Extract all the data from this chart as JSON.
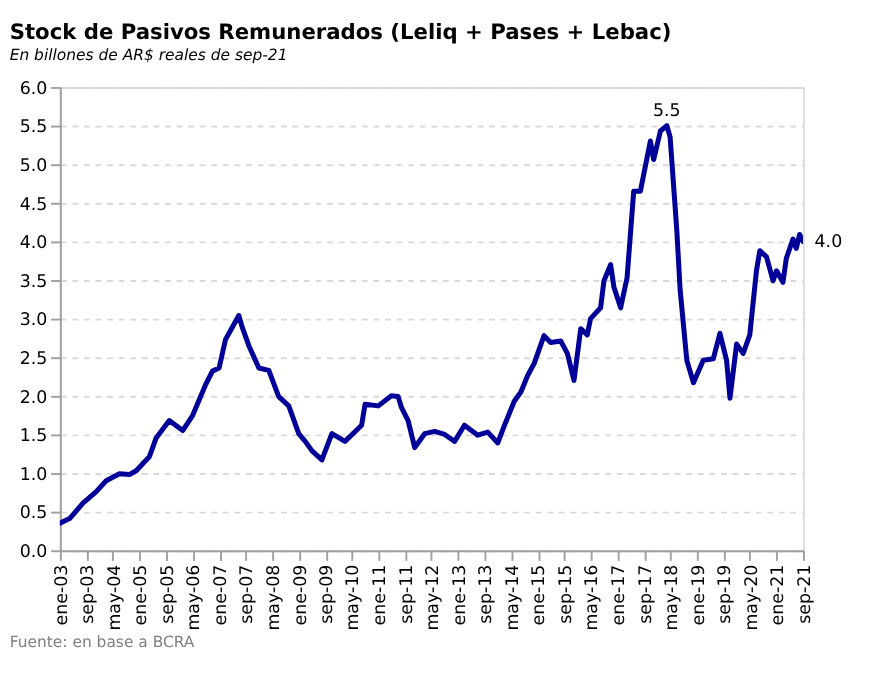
{
  "chart_data": {
    "type": "line",
    "title": "Stock de Pasivos Remunerados (Leliq + Pases + Lebac)",
    "subtitle": "En billones de AR$ reales de sep-21",
    "x": [
      "2003-01",
      "2003-04",
      "2003-06",
      "2003-08",
      "2003-12",
      "2004-03",
      "2004-07",
      "2004-10",
      "2004-12",
      "2005-04",
      "2005-06",
      "2005-10",
      "2006-02",
      "2006-05",
      "2006-09",
      "2006-11",
      "2007-01",
      "2007-03",
      "2007-07",
      "2007-08",
      "2007-10",
      "2008-01",
      "2008-04",
      "2008-07",
      "2008-10",
      "2009-01",
      "2009-03",
      "2009-05",
      "2009-08",
      "2009-11",
      "2010-03",
      "2010-08",
      "2010-09",
      "2011-01",
      "2011-05",
      "2011-07",
      "2011-08",
      "2011-10",
      "2011-12",
      "2012-03",
      "2012-06",
      "2012-09",
      "2012-12",
      "2013-03",
      "2013-07",
      "2013-10",
      "2014-01",
      "2014-03",
      "2014-06",
      "2014-08",
      "2014-10",
      "2014-12",
      "2015-03",
      "2015-05",
      "2015-08",
      "2015-10",
      "2015-12",
      "2016-02",
      "2016-04",
      "2016-05",
      "2016-08",
      "2016-09",
      "2016-11",
      "2016-12",
      "2017-02",
      "2017-04",
      "2017-06",
      "2017-08",
      "2017-11",
      "2017-12",
      "2018-02",
      "2018-04",
      "2018-05",
      "2018-07",
      "2018-08",
      "2018-10",
      "2018-12",
      "2019-03",
      "2019-06",
      "2019-08",
      "2019-10",
      "2019-11",
      "2020-01",
      "2020-03",
      "2020-05",
      "2020-07",
      "2020-08",
      "2020-10",
      "2020-12",
      "2021-01",
      "2021-03",
      "2021-04",
      "2021-06",
      "2021-07",
      "2021-08",
      "2021-09"
    ],
    "series": [
      {
        "color": "#000099",
        "values": [
          0.35,
          0.41,
          0.51,
          0.61,
          0.76,
          0.9,
          0.99,
          0.98,
          1.03,
          1.21,
          1.45,
          1.68,
          1.55,
          1.74,
          2.15,
          2.32,
          2.36,
          2.73,
          3.04,
          2.89,
          2.65,
          2.36,
          2.33,
          1.99,
          1.87,
          1.51,
          1.41,
          1.29,
          1.17,
          1.51,
          1.41,
          1.62,
          1.89,
          1.87,
          2.0,
          1.99,
          1.85,
          1.68,
          1.33,
          1.51,
          1.54,
          1.5,
          1.41,
          1.62,
          1.49,
          1.53,
          1.39,
          1.61,
          1.93,
          2.05,
          2.26,
          2.42,
          2.78,
          2.69,
          2.71,
          2.55,
          2.2,
          2.87,
          2.79,
          3.0,
          3.14,
          3.49,
          3.7,
          3.41,
          3.14,
          3.53,
          4.65,
          4.65,
          5.3,
          5.06,
          5.43,
          5.5,
          5.35,
          4.15,
          3.37,
          2.46,
          2.17,
          2.46,
          2.48,
          2.81,
          2.46,
          1.97,
          2.67,
          2.55,
          2.79,
          3.62,
          3.88,
          3.8,
          3.49,
          3.62,
          3.47,
          3.78,
          4.03,
          3.91,
          4.09,
          4.0
        ]
      }
    ],
    "ylim": [
      0,
      6
    ],
    "yticks": [
      {
        "value": 0,
        "label": "0.0"
      },
      0.5,
      {
        "value": 1,
        "label": "1.0"
      },
      1.5,
      {
        "value": 2,
        "label": "2.0"
      },
      2.5,
      {
        "value": 3,
        "label": "3.0"
      },
      3.5,
      {
        "value": 4,
        "label": "4.0"
      },
      4.5,
      {
        "value": 5,
        "label": "5.0"
      },
      5.5,
      {
        "value": 6,
        "label": "6.0"
      }
    ],
    "xlim": [
      "2003-01",
      "2021-09"
    ],
    "xticks": [
      {
        "value": "2003-01",
        "label": "ene-03"
      },
      {
        "value": "2003-09",
        "label": "sep-03"
      },
      {
        "value": "2004-05",
        "label": "may-04"
      },
      {
        "value": "2005-01",
        "label": "ene-05"
      },
      {
        "value": "2005-09",
        "label": "sep-05"
      },
      {
        "value": "2006-05",
        "label": "may-06"
      },
      {
        "value": "2007-01",
        "label": "ene-07"
      },
      {
        "value": "2007-09",
        "label": "sep-07"
      },
      {
        "value": "2008-05",
        "label": "may-08"
      },
      {
        "value": "2009-01",
        "label": "ene-09"
      },
      {
        "value": "2009-09",
        "label": "sep-09"
      },
      {
        "value": "2010-05",
        "label": "may-10"
      },
      {
        "value": "2011-01",
        "label": "ene-11"
      },
      {
        "value": "2011-09",
        "label": "sep-11"
      },
      {
        "value": "2012-05",
        "label": "may-12"
      },
      {
        "value": "2013-01",
        "label": "ene-13"
      },
      {
        "value": "2013-09",
        "label": "sep-13"
      },
      {
        "value": "2014-05",
        "label": "may-14"
      },
      {
        "value": "2015-01",
        "label": "ene-15"
      },
      {
        "value": "2015-09",
        "label": "sep-15"
      },
      {
        "value": "2016-05",
        "label": "may-16"
      },
      {
        "value": "2017-01",
        "label": "ene-17"
      },
      {
        "value": "2017-09",
        "label": "sep-17"
      },
      {
        "value": "2018-05",
        "label": "may-18"
      },
      {
        "value": "2019-01",
        "label": "ene-19"
      },
      {
        "value": "2019-09",
        "label": "sep-19"
      },
      {
        "value": "2020-05",
        "label": "may-20"
      },
      {
        "value": "2021-01",
        "label": "ene-21"
      },
      {
        "value": "2021-09",
        "label": "sep-21"
      }
    ],
    "grid": "y",
    "marker": "none",
    "line_style": "solid",
    "annotations": [
      {
        "text": "5.5",
        "x": "2018-04",
        "y": 5.5
      },
      {
        "text": "4.0",
        "x": "2021-09",
        "y": 4.0
      },
      "Fuente: en base a BCRA"
    ]
  }
}
